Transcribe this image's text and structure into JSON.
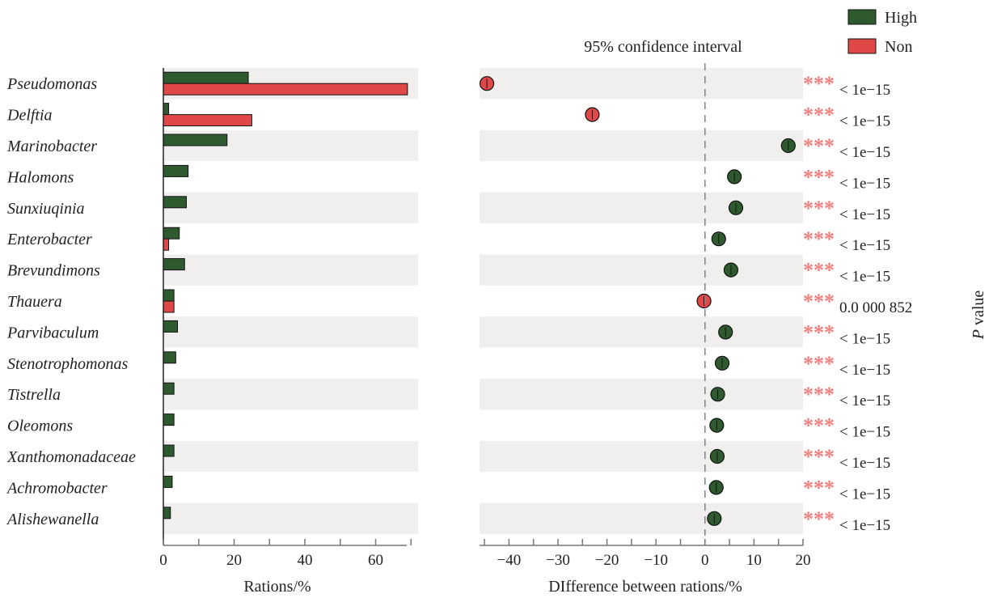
{
  "chart_data": {
    "type": "bar",
    "title": "95% confidence interval",
    "categories": [
      "Pseudomonas",
      "Delftia",
      "Marinobacter",
      "Halomons",
      "Sunxiuqinia",
      "Enterobacter",
      "Brevundimons",
      "Thauera",
      "Parvibaculum",
      "Stenotrophomonas",
      "Tistrella",
      "Oleomons",
      "Xanthomonadaceae",
      "Achromobacter",
      "Alishewanella"
    ],
    "series": [
      {
        "name": "High",
        "color": "#2f5a2f",
        "values": [
          24,
          1.5,
          18,
          7,
          6.5,
          4.5,
          6,
          3,
          4,
          3.5,
          3,
          3,
          3,
          2.5,
          2
        ]
      },
      {
        "name": "Non",
        "color": "#e04848",
        "values": [
          69,
          25,
          0,
          0,
          0,
          1.5,
          0,
          3,
          0,
          0,
          0,
          0,
          0,
          0,
          0
        ]
      }
    ],
    "xlabel": "Rations/%",
    "xticks": [
      0,
      20,
      40,
      60
    ],
    "xlim": [
      0,
      72
    ],
    "difference": {
      "xlabel": "DIfference between rations/%",
      "xticks": [
        -40,
        -30,
        -20,
        -10,
        0,
        10,
        20
      ],
      "xlim": [
        -46,
        20
      ],
      "values": [
        -44.5,
        -23,
        17,
        6,
        6.3,
        2.8,
        5.3,
        -0.2,
        4.2,
        3.5,
        2.6,
        2.4,
        2.5,
        2.3,
        1.9
      ],
      "favors": [
        "Non",
        "Non",
        "High",
        "High",
        "High",
        "High",
        "High",
        "Non",
        "High",
        "High",
        "High",
        "High",
        "High",
        "High",
        "High"
      ]
    },
    "significance": [
      "***",
      "***",
      "***",
      "***",
      "***",
      "***",
      "***",
      "***",
      "***",
      "***",
      "***",
      "***",
      "***",
      "***",
      "***"
    ],
    "pvalues": [
      "< 1e−15",
      "< 1e−15",
      "< 1e−15",
      "< 1e−15",
      "< 1e−15",
      "< 1e−15",
      "< 1e−15",
      "0.0 000 852",
      "< 1e−15",
      "< 1e−15",
      "< 1e−15",
      "< 1e−15",
      "< 1e−15",
      "< 1e−15",
      "< 1e−15"
    ],
    "pvalue_label_italic": "P",
    "pvalue_label_rest": " value",
    "legend_position": "top-right",
    "colors": {
      "stripe": "#f1efee",
      "high": "#2f5a2f",
      "non": "#e04848",
      "star": "#f07f7f",
      "axis": "#777777"
    }
  }
}
